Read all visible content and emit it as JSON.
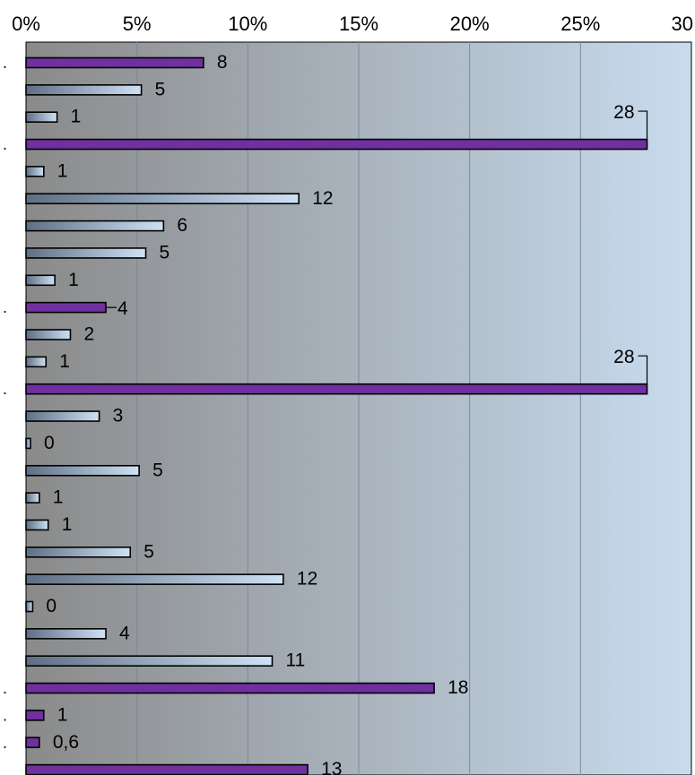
{
  "chart_data": {
    "type": "bar",
    "orientation": "horizontal",
    "xlim": [
      0,
      30
    ],
    "x_ticks": [
      "0%",
      "5%",
      "10%",
      "15%",
      "20%",
      "25%",
      "30"
    ],
    "y_tick_labels": [
      ".",
      ".",
      ".",
      ".",
      ".",
      ".",
      "."
    ],
    "grid": true,
    "colors": {
      "highlight": "#7030a0",
      "normal_light": "#cfe2f5",
      "normal_dark": "#5e6f85",
      "background_left": "#8a8a8a",
      "background_right": "#c8dcef"
    },
    "bars": [
      {
        "value": 8,
        "label": "8",
        "highlight": true
      },
      {
        "value": 5.2,
        "label": "5",
        "highlight": false
      },
      {
        "value": 1.4,
        "label": "1",
        "highlight": false
      },
      {
        "value": 28,
        "label": "28",
        "highlight": true
      },
      {
        "value": 0.8,
        "label": "1",
        "highlight": false
      },
      {
        "value": 12.3,
        "label": "12",
        "highlight": false
      },
      {
        "value": 6.2,
        "label": "6",
        "highlight": false
      },
      {
        "value": 5.4,
        "label": "5",
        "highlight": false
      },
      {
        "value": 1.3,
        "label": "1",
        "highlight": false
      },
      {
        "value": 3.6,
        "label": "4",
        "highlight": true
      },
      {
        "value": 2,
        "label": "2",
        "highlight": false
      },
      {
        "value": 0.9,
        "label": "1",
        "highlight": false
      },
      {
        "value": 28,
        "label": "28",
        "highlight": true
      },
      {
        "value": 3.3,
        "label": "3",
        "highlight": false
      },
      {
        "value": 0.2,
        "label": "0",
        "highlight": false
      },
      {
        "value": 5.1,
        "label": "5",
        "highlight": false
      },
      {
        "value": 0.6,
        "label": "1",
        "highlight": false
      },
      {
        "value": 1,
        "label": "1",
        "highlight": false
      },
      {
        "value": 4.7,
        "label": "5",
        "highlight": false
      },
      {
        "value": 11.6,
        "label": "12",
        "highlight": false
      },
      {
        "value": 0.3,
        "label": "0",
        "highlight": false
      },
      {
        "value": 3.6,
        "label": "4",
        "highlight": false
      },
      {
        "value": 11.1,
        "label": "11",
        "highlight": false
      },
      {
        "value": 18.4,
        "label": "18",
        "highlight": true
      },
      {
        "value": 0.8,
        "label": "1",
        "highlight": true
      },
      {
        "value": 0.6,
        "label": "0,6",
        "highlight": true
      },
      {
        "value": 12.7,
        "label": "13",
        "highlight": true
      }
    ]
  }
}
